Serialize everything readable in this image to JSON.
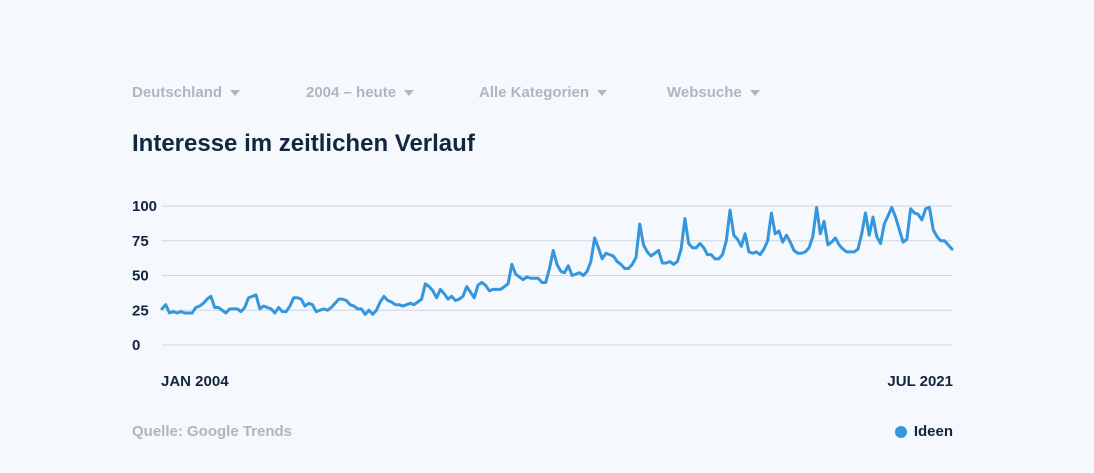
{
  "filters": [
    {
      "label": "Deutschland"
    },
    {
      "label": "2004 – heute"
    },
    {
      "label": "Alle Kategorien"
    },
    {
      "label": "Websuche"
    }
  ],
  "source": "Quelle: Google Trends",
  "colors": {
    "series": "#3596db",
    "text": "#13263f",
    "muted": "#aeb6c2",
    "grid": "#cfd6df"
  },
  "chart_data": {
    "type": "line",
    "title": "Interesse im zeitlichen Verlauf",
    "xlabel": "",
    "ylabel": "",
    "ylim": [
      0,
      100
    ],
    "yticks": [
      "0",
      "25",
      "50",
      "75",
      "100"
    ],
    "x_start": "2004-01",
    "x_end": "2021-07",
    "x_tick_labels": [
      "JAN 2004",
      "JUL 2021"
    ],
    "grid": true,
    "legend_position": "bottom-right",
    "series": [
      {
        "name": "Ideen",
        "values": [
          26,
          29,
          23,
          24,
          23,
          24,
          23,
          23,
          23,
          27,
          28,
          30,
          33,
          35,
          27,
          27,
          25,
          23,
          26,
          26,
          26,
          24,
          27,
          34,
          35,
          36,
          26,
          28,
          27,
          26,
          23,
          27,
          24,
          24,
          28,
          34,
          34,
          33,
          28,
          30,
          29,
          24,
          25,
          26,
          25,
          27,
          30,
          33,
          33,
          32,
          29,
          28,
          26,
          26,
          22,
          25,
          22,
          25,
          31,
          35,
          32,
          31,
          29,
          29,
          28,
          29,
          30,
          29,
          31,
          33,
          44,
          42,
          39,
          34,
          40,
          37,
          33,
          35,
          32,
          33,
          35,
          42,
          38,
          34,
          43,
          45,
          43,
          39,
          40,
          40,
          40,
          42,
          44,
          58,
          51,
          49,
          47,
          49,
          48,
          48,
          48,
          45,
          45,
          55,
          68,
          58,
          53,
          52,
          57,
          50,
          51,
          52,
          50,
          53,
          60,
          77,
          70,
          62,
          66,
          65,
          64,
          60,
          58,
          55,
          55,
          58,
          63,
          87,
          72,
          67,
          64,
          66,
          68,
          59,
          59,
          60,
          58,
          60,
          69,
          91,
          73,
          70,
          70,
          73,
          70,
          65,
          65,
          62,
          62,
          65,
          75,
          97,
          79,
          76,
          71,
          80,
          67,
          66,
          67,
          65,
          69,
          75,
          95,
          80,
          82,
          74,
          79,
          74,
          68,
          66,
          66,
          67,
          70,
          78,
          99,
          80,
          89,
          72,
          74,
          77,
          72,
          69,
          67,
          67,
          67,
          69,
          80,
          95,
          79,
          92,
          78,
          73,
          87,
          93,
          99,
          92,
          83,
          74,
          76,
          98,
          95,
          94,
          90,
          98,
          99,
          83,
          78,
          75,
          75,
          72,
          69
        ]
      }
    ]
  }
}
